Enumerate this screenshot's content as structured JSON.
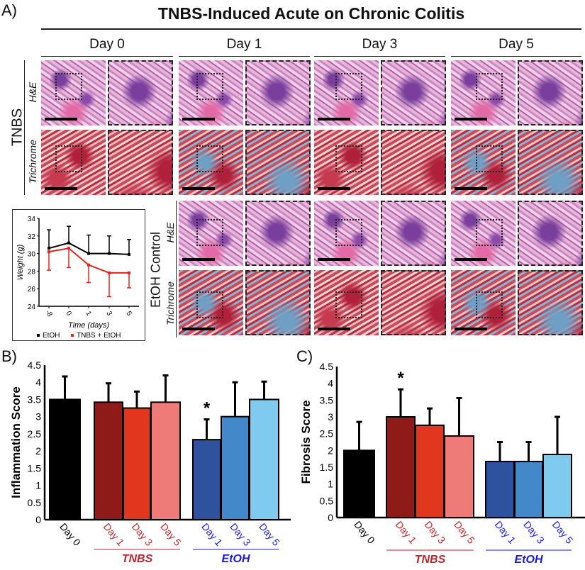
{
  "panel_labels": {
    "a": "A)",
    "b": "B)",
    "c": "C)"
  },
  "title": "TNBS-Induced Acute on Chronic Colitis",
  "columns": [
    "Day 0",
    "Day 1",
    "Day 3",
    "Day 5"
  ],
  "row_groups": {
    "tnbs": {
      "label": "TNBS",
      "stains": [
        "H&E",
        "Trichrome"
      ]
    },
    "etoh": {
      "label": "EtOH Control",
      "stains": [
        "H&E",
        "Trichrome"
      ]
    }
  },
  "colors": {
    "day0": "#000000",
    "tnbs": [
      "#8e1b17",
      "#e2371f",
      "#ee7b78"
    ],
    "etoh": [
      "#2f529e",
      "#4389c9",
      "#7fcbf0"
    ],
    "tnbs_label": "#c0262d",
    "etoh_label": "#1a1adb",
    "line_etoh": "#000000",
    "line_tnbs": "#e5241b"
  },
  "chart_data": [
    {
      "type": "line",
      "xlabel": "Time (days)",
      "ylabel": "Weight (g)",
      "categories": [
        "-8",
        "0",
        "1",
        "3",
        "5"
      ],
      "ylim": [
        24,
        34
      ],
      "yticks": [
        "24",
        "26",
        "28",
        "30",
        "32",
        "34"
      ],
      "legend": "bottom",
      "series": [
        {
          "name": "EtOH",
          "values": [
            30.6,
            31.2,
            30.0,
            30.0,
            29.9
          ],
          "error_upper": [
            32.7,
            33.1,
            32.1,
            32.0,
            31.6
          ]
        },
        {
          "name": "TNBS + EtOH",
          "values": [
            30.2,
            30.6,
            28.7,
            27.8,
            27.8
          ],
          "error_lower": [
            28.1,
            28.4,
            26.7,
            25.1,
            26.1
          ]
        }
      ]
    },
    {
      "type": "bar",
      "ylabel": "Inflammation Score",
      "ylim": [
        0,
        4.5
      ],
      "yticks": [
        "0",
        "0.5",
        "1",
        "1.5",
        "2",
        "2.5",
        "3",
        "3.5",
        "4",
        "4.5"
      ],
      "categories": [
        "Day 0",
        "Day 1",
        "Day 3",
        "Day 5",
        "Day 1",
        "Day 3",
        "Day 5"
      ],
      "groups": [
        {
          "label": "TNBS"
        },
        {
          "label": "EtOH"
        }
      ],
      "values": [
        3.5,
        3.42,
        3.25,
        3.42,
        2.33,
        3.0,
        3.5
      ],
      "error_upper": [
        4.17,
        3.97,
        3.73,
        4.2,
        2.92,
        4.0,
        4.02
      ],
      "annotations": [
        {
          "category_index": 4,
          "text": "*"
        }
      ]
    },
    {
      "type": "bar",
      "ylabel": "Fibrosis Score",
      "ylim": [
        0,
        4.5
      ],
      "yticks": [
        "0",
        "0.5",
        "1",
        "1.5",
        "2",
        "2.5",
        "3",
        "3.5",
        "4",
        "4.5"
      ],
      "categories": [
        "Day 0",
        "Day 1",
        "Day 3",
        "Day 5",
        "Day 1",
        "Day 3",
        "Day 5"
      ],
      "groups": [
        {
          "label": "TNBS"
        },
        {
          "label": "EtOH"
        }
      ],
      "values": [
        2.0,
        3.0,
        2.75,
        2.43,
        1.67,
        1.67,
        1.88
      ],
      "error_upper": [
        2.85,
        3.82,
        3.25,
        3.56,
        2.25,
        2.25,
        3.0
      ],
      "annotations": [
        {
          "category_index": 1,
          "text": "*"
        }
      ]
    }
  ]
}
